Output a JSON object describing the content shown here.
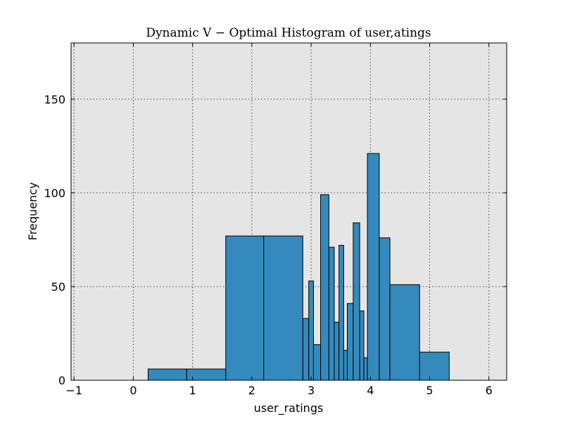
{
  "chart_data": {
    "type": "bar",
    "title": "Dynamic V − Optimal Histogram of user,atings",
    "xlabel": "user_ratings",
    "ylabel": "Frequency",
    "xlim": [
      -1.05,
      6.3
    ],
    "ylim": [
      0,
      180
    ],
    "xticks": [
      "−1",
      "0",
      "1",
      "2",
      "3",
      "4",
      "5",
      "6"
    ],
    "xtick_values": [
      -1,
      0,
      1,
      2,
      3,
      4,
      5,
      6
    ],
    "yticks": [
      "0",
      "50",
      "100",
      "150"
    ],
    "ytick_values": [
      0,
      50,
      100,
      150
    ],
    "grid": true,
    "plot_background": "#e5e5e5",
    "bar_color": "#348abd",
    "bins": [
      {
        "x0": 0.25,
        "x1": 0.9,
        "value": 6
      },
      {
        "x0": 0.9,
        "x1": 1.56,
        "value": 6
      },
      {
        "x0": 1.56,
        "x1": 2.2,
        "value": 77
      },
      {
        "x0": 2.2,
        "x1": 2.86,
        "value": 77
      },
      {
        "x0": 2.86,
        "x1": 2.96,
        "value": 33
      },
      {
        "x0": 2.96,
        "x1": 3.04,
        "value": 53
      },
      {
        "x0": 3.04,
        "x1": 3.16,
        "value": 19
      },
      {
        "x0": 3.16,
        "x1": 3.3,
        "value": 99
      },
      {
        "x0": 3.3,
        "x1": 3.39,
        "value": 71
      },
      {
        "x0": 3.39,
        "x1": 3.47,
        "value": 31
      },
      {
        "x0": 3.47,
        "x1": 3.55,
        "value": 72
      },
      {
        "x0": 3.55,
        "x1": 3.61,
        "value": 16
      },
      {
        "x0": 3.61,
        "x1": 3.71,
        "value": 41
      },
      {
        "x0": 3.71,
        "x1": 3.82,
        "value": 84
      },
      {
        "x0": 3.82,
        "x1": 3.89,
        "value": 37
      },
      {
        "x0": 3.89,
        "x1": 3.95,
        "value": 12
      },
      {
        "x0": 3.95,
        "x1": 4.15,
        "value": 121
      },
      {
        "x0": 4.15,
        "x1": 4.33,
        "value": 76
      },
      {
        "x0": 4.33,
        "x1": 4.83,
        "value": 51
      },
      {
        "x0": 4.83,
        "x1": 5.33,
        "value": 15
      }
    ]
  }
}
